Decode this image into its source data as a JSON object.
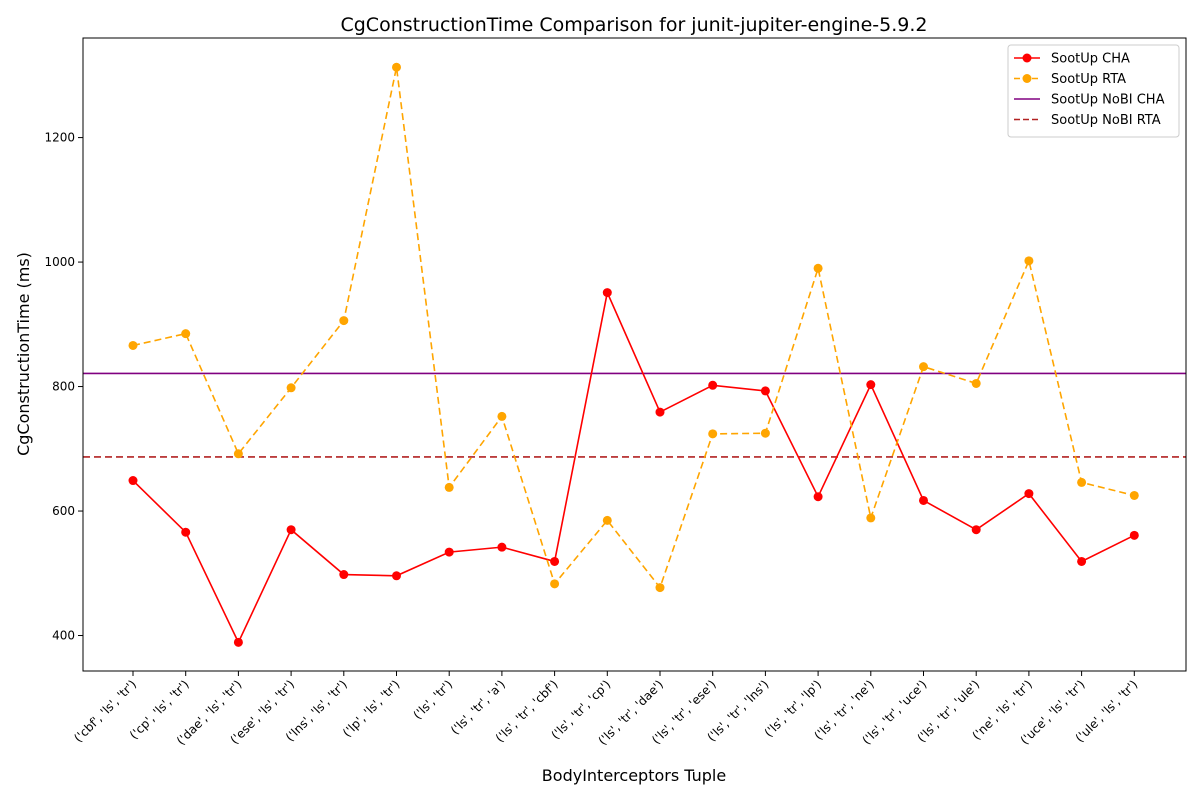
{
  "chart_data": {
    "type": "line",
    "title": "CgConstructionTime Comparison for junit-jupiter-engine-5.9.2",
    "xlabel": "BodyInterceptors Tuple",
    "ylabel": "CgConstructionTime (ms)",
    "ylim": [
      343,
      1360
    ],
    "yticks": [
      400,
      600,
      800,
      1000,
      1200
    ],
    "grid": false,
    "legend_position": "top-right",
    "categories": [
      "('cbf', 'ls', 'tr')",
      "('cp', 'ls', 'tr')",
      "('dae', 'ls', 'tr')",
      "('ese', 'ls', 'tr')",
      "('lns', 'ls', 'tr')",
      "('lp', 'ls', 'tr')",
      "('ls', 'tr')",
      "('ls', 'tr', 'a')",
      "('ls', 'tr', 'cbf')",
      "('ls', 'tr', 'cp')",
      "('ls', 'tr', 'dae')",
      "('ls', 'tr', 'ese')",
      "('ls', 'tr', 'lns')",
      "('ls', 'tr', 'lp')",
      "('ls', 'tr', 'ne')",
      "('ls', 'tr', 'uce')",
      "('ls', 'tr', 'ule')",
      "('ne', 'ls', 'tr')",
      "('uce', 'ls', 'tr')",
      "('ule', 'ls', 'tr')"
    ],
    "series": [
      {
        "name": "SootUp CHA",
        "color": "#ff0000",
        "style": "solid",
        "marker": "circle",
        "values": [
          649,
          566,
          389,
          570,
          498,
          496,
          534,
          542,
          519,
          951,
          759,
          802,
          793,
          623,
          803,
          617,
          570,
          628,
          519,
          561
        ]
      },
      {
        "name": "SootUp RTA",
        "color": "#ffa500",
        "style": "dashed",
        "marker": "circle",
        "values": [
          866,
          885,
          692,
          798,
          906,
          1313,
          638,
          752,
          483,
          585,
          477,
          724,
          725,
          990,
          589,
          832,
          805,
          1002,
          646,
          625
        ]
      },
      {
        "name": "SootUp NoBI CHA",
        "color": "#800080",
        "style": "solid",
        "marker": "none",
        "hline": 821
      },
      {
        "name": "SootUp NoBI RTA",
        "color": "#b22222",
        "style": "dashed",
        "marker": "none",
        "hline": 687
      }
    ]
  }
}
